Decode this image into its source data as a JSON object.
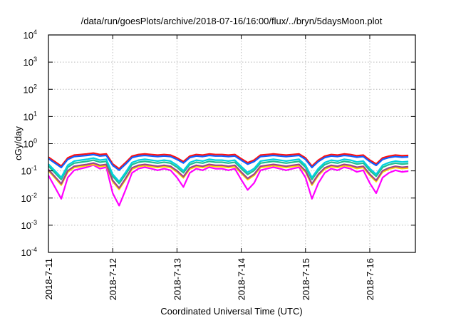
{
  "chart_data": {
    "type": "line",
    "title": "/data/run/goesPlots/archive/2018-07-16/16:00/flux/../bryn/5daysMoon.plot",
    "xlabel": "Coordinated Universal Time (UTC)",
    "ylabel": "cGy/day",
    "yscale": "log",
    "ylim": [
      0.0001,
      10000
    ],
    "y_ticks": [
      {
        "base": "10",
        "exp": "-4",
        "value": 0.0001
      },
      {
        "base": "10",
        "exp": "-3",
        "value": 0.001
      },
      {
        "base": "10",
        "exp": "-2",
        "value": 0.01
      },
      {
        "base": "10",
        "exp": "-1",
        "value": 0.1
      },
      {
        "base": "10",
        "exp": "0",
        "value": 1
      },
      {
        "base": "10",
        "exp": "1",
        "value": 10
      },
      {
        "base": "10",
        "exp": "2",
        "value": 100
      },
      {
        "base": "10",
        "exp": "3",
        "value": 1000
      },
      {
        "base": "10",
        "exp": "4",
        "value": 10000
      }
    ],
    "x_units": "days since 2018-7-11 00:00 UTC",
    "xlim": [
      0,
      5.71
    ],
    "x_ticks": [
      {
        "label": "2018-7-11",
        "value": 0
      },
      {
        "label": "2018-7-12",
        "value": 1
      },
      {
        "label": "2018-7-13",
        "value": 2
      },
      {
        "label": "2018-7-14",
        "value": 3
      },
      {
        "label": "2018-7-15",
        "value": 4
      },
      {
        "label": "2018-7-16",
        "value": 5
      }
    ],
    "grid": true,
    "x_step": 0.1,
    "base_values": [
      0.32,
      0.22,
      0.15,
      0.3,
      0.38,
      0.4,
      0.42,
      0.45,
      0.4,
      0.42,
      0.18,
      0.12,
      0.2,
      0.35,
      0.4,
      0.42,
      0.4,
      0.38,
      0.4,
      0.38,
      0.3,
      0.22,
      0.35,
      0.4,
      0.38,
      0.42,
      0.4,
      0.4,
      0.38,
      0.4,
      0.28,
      0.2,
      0.25,
      0.38,
      0.4,
      0.42,
      0.4,
      0.38,
      0.4,
      0.42,
      0.3,
      0.15,
      0.25,
      0.35,
      0.4,
      0.38,
      0.42,
      0.4,
      0.36,
      0.38,
      0.25,
      0.18,
      0.3,
      0.35,
      0.38,
      0.36,
      0.37
    ],
    "series": [
      {
        "color": "#ff00ff",
        "scale": 0.3,
        "dip": 1.6
      },
      {
        "color": "#ffd700",
        "scale": 0.36,
        "dip": 0.6
      },
      {
        "color": "#a0408a",
        "scale": 0.4,
        "dip": 0.6
      },
      {
        "color": "#20c090",
        "scale": 0.52,
        "dip": 0.5
      },
      {
        "color": "#00d0e0",
        "scale": 0.62,
        "dip": 0.5
      },
      {
        "color": "#ff1010",
        "scale": 1.0,
        "dip": 0
      },
      {
        "color": "#1060ff",
        "scale": 0.88,
        "dip": 0
      }
    ]
  }
}
